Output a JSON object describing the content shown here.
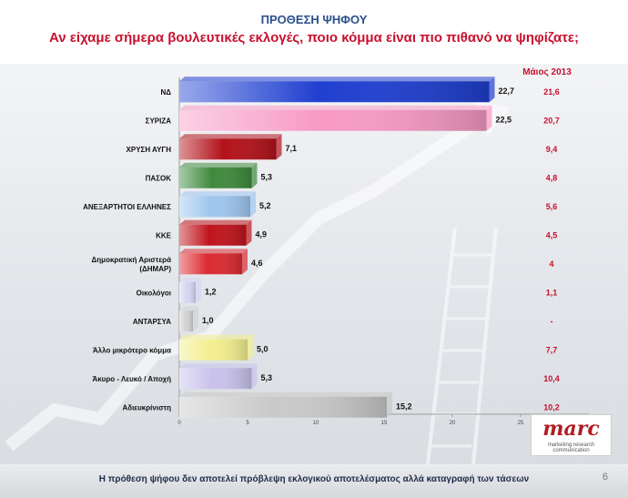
{
  "header": {
    "title": "ΠΡΟΘΕΣΗ ΨΗΦΟΥ",
    "subtitle": "Αν είχαμε σήμερα βουλευτικές εκλογές, ποιο κόμμα είναι πιο πιθανό να ψηφίζατε;"
  },
  "chart_data": {
    "type": "bar",
    "orientation": "horizontal",
    "categories": [
      "ΝΔ",
      "ΣΥΡΙΖΑ",
      "ΧΡΥΣΗ ΑΥΓΗ",
      "ΠΑΣΟΚ",
      "ΑΝΕΞΑΡΤΗΤΟΙ ΕΛΛΗΝΕΣ",
      "ΚΚΕ",
      "Δημοκρατική Αριστερά (ΔΗΜΑΡ)",
      "Οικολόγοι",
      "ΑΝΤΑΡΣΥΑ",
      "Άλλο μικρότερο κόμμα",
      "Άκυρο - Λευκό / Αποχή",
      "Αδιευκρίνιστη"
    ],
    "values": [
      22.7,
      22.5,
      7.1,
      5.3,
      5.2,
      4.9,
      4.6,
      1.2,
      1.0,
      5.0,
      5.3,
      15.2
    ],
    "value_labels": [
      "22,7",
      "22,5",
      "7,1",
      "5,3",
      "5,2",
      "4,9",
      "4,6",
      "1,2",
      "1,0",
      "5,0",
      "5,3",
      "15,2"
    ],
    "bar_colors": [
      "#1f3fd0",
      "#f79ac6",
      "#b3121b",
      "#3f8a3d",
      "#9ec6ef",
      "#c0141c",
      "#dc2b32",
      "#d6d6f2",
      "#d3d3d3",
      "#f3ef8e",
      "#c9c2ec",
      "#c9c9c9"
    ],
    "comparison": {
      "label": "Μάιος 2013",
      "values": [
        "21,6",
        "20,7",
        "9,4",
        "4,8",
        "5,6",
        "4,5",
        "4",
        "1,1",
        "-",
        "7,7",
        "10,4",
        "10,2"
      ]
    },
    "xlim": [
      0,
      30
    ],
    "xticks": [
      "0",
      "5",
      "10",
      "15",
      "20",
      "25",
      "30"
    ],
    "grid": false,
    "title": "",
    "xlabel": "",
    "ylabel": ""
  },
  "logo": {
    "name": "marc",
    "tagline": "marketing research communication"
  },
  "footer": {
    "note": "Η πρόθεση ψήφου δεν αποτελεί πρόβλεψη εκλογικού αποτελέσματος αλλά καταγραφή των τάσεων",
    "page": "6"
  }
}
